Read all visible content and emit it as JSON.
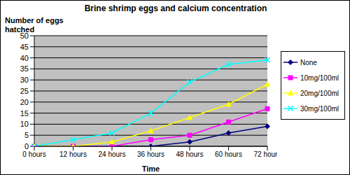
{
  "chart_data": {
    "type": "line",
    "title": "Brine shrimp eggs and calcium concentration",
    "x_label": "Time",
    "y_label": "Number of eggs hatched",
    "categories": [
      "0 hours",
      "12 hours",
      "24 hours",
      "36 hours",
      "48 hours",
      "60 hours",
      "72 hours"
    ],
    "series": [
      {
        "name": "None",
        "color": "#000080",
        "marker": "diamond",
        "values": [
          0,
          0,
          0,
          0,
          2,
          6,
          9
        ]
      },
      {
        "name": "10mg/100ml",
        "color": "#ff00ff",
        "marker": "square",
        "values": [
          0,
          0,
          0,
          3,
          5,
          11,
          17
        ]
      },
      {
        "name": "20mg/100ml",
        "color": "#ffff00",
        "marker": "triangle",
        "values": [
          0,
          0,
          2,
          7,
          13,
          19,
          28
        ]
      },
      {
        "name": "30mg/100ml",
        "color": "#00ffff",
        "marker": "x",
        "values": [
          0,
          3,
          6,
          15,
          29,
          37,
          39
        ]
      }
    ],
    "ylim": [
      0,
      50
    ],
    "yticks": [
      0,
      5,
      10,
      15,
      20,
      25,
      30,
      35,
      40,
      45,
      50
    ],
    "grid": true,
    "legend": "right"
  }
}
